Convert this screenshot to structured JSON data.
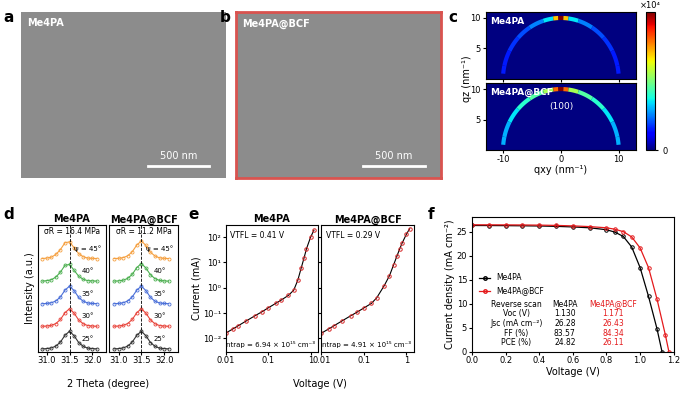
{
  "chart_data": [
    {
      "panel": "a",
      "type": "image",
      "label": "Me4PA",
      "scale_bar": "500 nm"
    },
    {
      "panel": "b",
      "type": "image",
      "label": "Me4PA@BCF",
      "scale_bar": "500 nm",
      "color": "#d9534f"
    },
    {
      "panel": "c",
      "type": "heatmap",
      "xlabel": "qxy (nm⁻¹)",
      "ylabel": "qz (nm⁻¹)",
      "xlim": [
        -13,
        13
      ],
      "ylim": [
        0,
        11
      ],
      "xticks": [
        -10,
        0,
        10
      ],
      "yticks": [
        5,
        10
      ],
      "cbar_range": [
        0,
        2
      ],
      "cbar_ticks": [
        0
      ],
      "cbar_label": "×10⁴",
      "ring_q": 10,
      "angles": [
        -85,
        -70,
        -55,
        -40,
        -25,
        -10,
        -5,
        0,
        5,
        10,
        25,
        40,
        55,
        70,
        85
      ],
      "series": [
        {
          "name": "Me4PA",
          "values": [
            0.3,
            0.3,
            0.35,
            0.4,
            0.5,
            0.7,
            1.4,
            2.0,
            1.4,
            0.7,
            0.5,
            0.4,
            0.35,
            0.3,
            0.3
          ]
        },
        {
          "name": "Me4PA@BCF",
          "annotation": "(100)",
          "values": [
            0.6,
            0.6,
            0.7,
            0.8,
            0.9,
            1.1,
            1.6,
            2.0,
            1.6,
            1.1,
            0.9,
            0.8,
            0.7,
            0.6,
            0.6
          ]
        }
      ]
    },
    {
      "panel": "d",
      "type": "line",
      "xlabel": "2 Theta (degree)",
      "ylabel": "Intensity (a.u.)",
      "xlim": [
        30.8,
        32.3
      ],
      "ylim": [
        0,
        5.6
      ],
      "xticks": [
        31.0,
        31.5,
        32.0
      ],
      "tick_labels": "x",
      "reference_x": 31.5,
      "marker": "o",
      "x": [
        30.9,
        31.0,
        31.1,
        31.2,
        31.3,
        31.4,
        31.5,
        31.6,
        31.7,
        31.8,
        31.9,
        32.0,
        32.1
      ],
      "charts": [
        {
          "title": "Me4PA",
          "annotation": "σR = 16.4 MPa",
          "series": [
            {
              "name": "ψ = 45°",
              "color": "#f5a040",
              "values": [
                4.12,
                4.14,
                4.18,
                4.3,
                4.52,
                4.82,
                4.86,
                4.6,
                4.34,
                4.2,
                4.14,
                4.13,
                4.12
              ]
            },
            {
              "name": "40°",
              "color": "#4caf50",
              "values": [
                3.12,
                3.14,
                3.18,
                3.3,
                3.52,
                3.82,
                3.86,
                3.6,
                3.34,
                3.2,
                3.14,
                3.13,
                3.12
              ]
            },
            {
              "name": "35°",
              "color": "#4a6fd8",
              "values": [
                2.12,
                2.13,
                2.16,
                2.24,
                2.42,
                2.72,
                2.9,
                2.7,
                2.4,
                2.23,
                2.15,
                2.13,
                2.12
              ]
            },
            {
              "name": "30°",
              "color": "#e8453c",
              "values": [
                1.12,
                1.13,
                1.16,
                1.24,
                1.42,
                1.72,
                1.9,
                1.7,
                1.4,
                1.23,
                1.15,
                1.13,
                1.12
              ]
            },
            {
              "name": "25°",
              "color": "#333333",
              "values": [
                0.12,
                0.13,
                0.16,
                0.24,
                0.42,
                0.72,
                0.9,
                0.7,
                0.4,
                0.23,
                0.15,
                0.13,
                0.12
              ]
            }
          ]
        },
        {
          "title": "Me4PA@BCF",
          "annotation": "σR = 11.2 MPa",
          "series": [
            {
              "name": "ψ = 45°",
              "color": "#f5a040",
              "values": [
                4.12,
                4.13,
                4.16,
                4.24,
                4.42,
                4.72,
                4.9,
                4.7,
                4.4,
                4.23,
                4.15,
                4.13,
                4.12
              ]
            },
            {
              "name": "40°",
              "color": "#4caf50",
              "values": [
                3.12,
                3.13,
                3.16,
                3.24,
                3.42,
                3.72,
                3.9,
                3.7,
                3.4,
                3.23,
                3.15,
                3.13,
                3.12
              ]
            },
            {
              "name": "35°",
              "color": "#4a6fd8",
              "values": [
                2.12,
                2.13,
                2.16,
                2.24,
                2.42,
                2.72,
                2.9,
                2.7,
                2.4,
                2.23,
                2.15,
                2.13,
                2.12
              ]
            },
            {
              "name": "30°",
              "color": "#e8453c",
              "values": [
                1.12,
                1.13,
                1.16,
                1.24,
                1.42,
                1.72,
                1.9,
                1.7,
                1.4,
                1.23,
                1.15,
                1.13,
                1.12
              ]
            },
            {
              "name": "25°",
              "color": "#333333",
              "values": [
                0.12,
                0.13,
                0.16,
                0.24,
                0.42,
                0.72,
                0.9,
                0.7,
                0.4,
                0.23,
                0.15,
                0.13,
                0.12
              ]
            }
          ]
        }
      ]
    },
    {
      "panel": "e",
      "type": "scatter",
      "log": true,
      "xlabel": "Voltage (V)",
      "ylabel": "Current (mA)",
      "xlim": [
        0.01,
        1.5
      ],
      "ylim": [
        0.003,
        300
      ],
      "xticks": [
        0.01,
        0.1,
        1
      ],
      "yticks": [
        {
          "value": 0.01,
          "label": "10⁻²"
        },
        {
          "value": 0.1,
          "label": "10⁻¹"
        },
        {
          "value": 1,
          "label": "10⁰"
        },
        {
          "value": 10,
          "label": "10¹"
        },
        {
          "value": 100,
          "label": "10²"
        }
      ],
      "marker": "o",
      "x": [
        0.01,
        0.015,
        0.02,
        0.03,
        0.05,
        0.07,
        0.1,
        0.15,
        0.2,
        0.3,
        0.4,
        0.5,
        0.6,
        0.7,
        0.8,
        1.0,
        1.2
      ],
      "charts": [
        {
          "title": "Me4PA",
          "color": "#d62728",
          "annotations": [
            "VTFL = 0.41 V",
            "ntrap = 6.94 × 10¹⁵ cm⁻³"
          ],
          "values": [
            0.016,
            0.024,
            0.032,
            0.048,
            0.08,
            0.11,
            0.16,
            0.24,
            0.32,
            0.5,
            0.8,
            2,
            6,
            15,
            35,
            100,
            190
          ]
        },
        {
          "title": "Me4PA@BCF",
          "color": "#d62728",
          "annotations": [
            "VTFL = 0.29 V",
            "ntrap = 4.91 × 10¹⁵ cm⁻³"
          ],
          "values": [
            0.016,
            0.024,
            0.032,
            0.048,
            0.08,
            0.11,
            0.16,
            0.24,
            0.4,
            1.2,
            3,
            8,
            18,
            35,
            60,
            130,
            220
          ]
        }
      ]
    },
    {
      "panel": "f",
      "type": "line",
      "xlabel": "Voltage (V)",
      "ylabel": "Current density (mA cm⁻²)",
      "xlim": [
        0,
        1.2
      ],
      "ylim": [
        0,
        28
      ],
      "xticks": [
        0.0,
        0.2,
        0.4,
        0.6,
        0.8,
        1.0,
        1.2
      ],
      "yticks": [
        0,
        5,
        10,
        15,
        20,
        25
      ],
      "legend": "center left",
      "marker": "o",
      "series": [
        {
          "name": "Me4PA",
          "color": "#000000",
          "x": [
            0,
            0.1,
            0.2,
            0.3,
            0.4,
            0.5,
            0.6,
            0.7,
            0.8,
            0.85,
            0.9,
            0.95,
            1.0,
            1.05,
            1.1,
            1.13
          ],
          "values": [
            26.28,
            26.27,
            26.25,
            26.22,
            26.18,
            26.1,
            25.98,
            25.8,
            25.4,
            24.9,
            24.0,
            21.8,
            17.5,
            11.5,
            4.8,
            0
          ]
        },
        {
          "name": "Me4PA@BCF",
          "color": "#e41a1c",
          "x": [
            0,
            0.1,
            0.2,
            0.3,
            0.4,
            0.5,
            0.6,
            0.7,
            0.8,
            0.85,
            0.9,
            0.95,
            1.0,
            1.05,
            1.1,
            1.15,
            1.171
          ],
          "values": [
            26.43,
            26.42,
            26.41,
            26.39,
            26.36,
            26.3,
            26.2,
            26.05,
            25.8,
            25.5,
            25.0,
            23.9,
            21.6,
            17.5,
            11.0,
            3.5,
            0
          ]
        }
      ],
      "table": {
        "header": [
          "Reverse scan",
          "Me4PA",
          "Me4PA@BCF"
        ],
        "colors": [
          "#000000",
          "#000000",
          "#e41a1c"
        ],
        "rows": [
          [
            "Voc (V)",
            "1.130",
            "1.171"
          ],
          [
            "Jsc (mA cm⁻²)",
            "26.28",
            "26.43"
          ],
          [
            "FF (%)",
            "83.57",
            "84.34"
          ],
          [
            "PCE (%)",
            "24.82",
            "26.11"
          ]
        ]
      }
    }
  ]
}
